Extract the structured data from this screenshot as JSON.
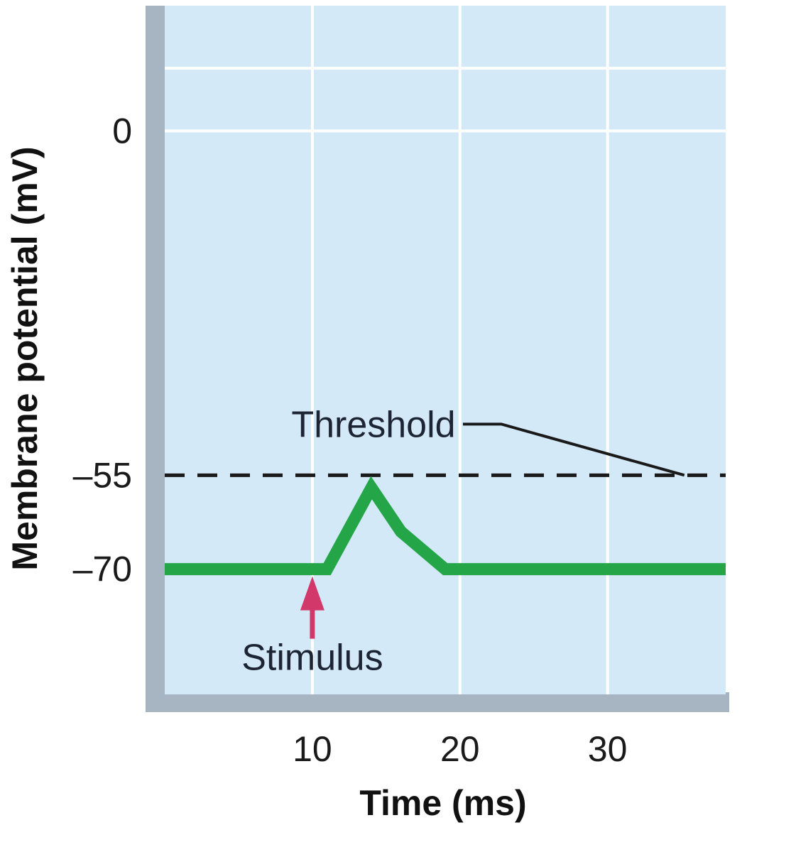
{
  "chart_data": {
    "type": "line",
    "title": "",
    "xlabel": "Time (ms)",
    "ylabel": "Membrane potential (mV)",
    "xlim": [
      0,
      38
    ],
    "ylim": [
      -90,
      20
    ],
    "x_ticks": [
      {
        "value": 10,
        "label": "10"
      },
      {
        "value": 20,
        "label": "20"
      },
      {
        "value": 30,
        "label": "30"
      }
    ],
    "y_ticks": [
      {
        "value": 0,
        "label": "0"
      },
      {
        "value": -55,
        "label": "–55"
      },
      {
        "value": -70,
        "label": "–70"
      }
    ],
    "grid": true,
    "series": [
      {
        "color": "#23a548",
        "points": [
          {
            "x": 0,
            "y": -70
          },
          {
            "x": 11,
            "y": -70
          },
          {
            "x": 14,
            "y": -57
          },
          {
            "x": 16,
            "y": -64
          },
          {
            "x": 19,
            "y": -70
          },
          {
            "x": 38,
            "y": -70
          }
        ]
      }
    ],
    "threshold": {
      "value": -55,
      "label": "Threshold",
      "color": "#1a1a1a"
    },
    "stimulus": {
      "x": 10,
      "label": "Stimulus",
      "color": "#d2386a"
    },
    "colors": {
      "plot_background": "#d3e9f8",
      "grid": "#ffffff",
      "frame": "#a7b4c2"
    }
  }
}
